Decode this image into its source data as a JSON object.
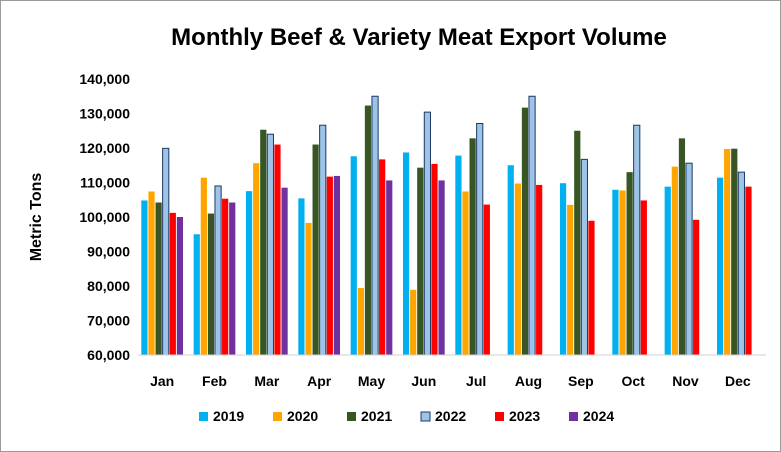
{
  "chart_data": {
    "type": "bar",
    "title": "Monthly Beef & Variety Meat Export Volume",
    "xlabel": "",
    "ylabel": "Metric Tons",
    "ylim": [
      60000,
      140000
    ],
    "yticks": [
      "60,000",
      "70,000",
      "80,000",
      "90,000",
      "100,000",
      "110,000",
      "120,000",
      "130,000",
      "140,000"
    ],
    "grid": false,
    "legend_position": "bottom",
    "categories": [
      "Jan",
      "Feb",
      "Mar",
      "Apr",
      "May",
      "Jun",
      "Jul",
      "Aug",
      "Sep",
      "Oct",
      "Nov",
      "Dec"
    ],
    "series": [
      {
        "name": "2019",
        "color": "#00B0F0",
        "values": [
          104800,
          95000,
          107500,
          105400,
          117600,
          118700,
          117800,
          115000,
          109800,
          107900,
          108800,
          111400
        ]
      },
      {
        "name": "2020",
        "color": "#FFA500",
        "values": [
          107400,
          111400,
          115600,
          98300,
          79400,
          78900,
          107400,
          109700,
          103500,
          107700,
          114600,
          119700
        ]
      },
      {
        "name": "2021",
        "color": "#375623",
        "values": [
          104200,
          101000,
          125300,
          121000,
          132300,
          114300,
          122800,
          131700,
          125000,
          113000,
          122800,
          119800
        ]
      },
      {
        "name": "2022",
        "color": "#9DC3E6",
        "values": [
          119900,
          109000,
          124000,
          126600,
          135000,
          130400,
          127100,
          135000,
          116700,
          126600,
          115600,
          113000
        ]
      },
      {
        "name": "2023",
        "color": "#FF0000",
        "values": [
          101200,
          105300,
          121000,
          111700,
          116700,
          115400,
          103600,
          109300,
          98900,
          104800,
          99200,
          108800
        ]
      },
      {
        "name": "2024",
        "color": "#7030A0",
        "values": [
          100000,
          104200,
          108500,
          111900,
          110600,
          110600,
          null,
          null,
          null,
          null,
          null,
          null
        ]
      }
    ]
  }
}
